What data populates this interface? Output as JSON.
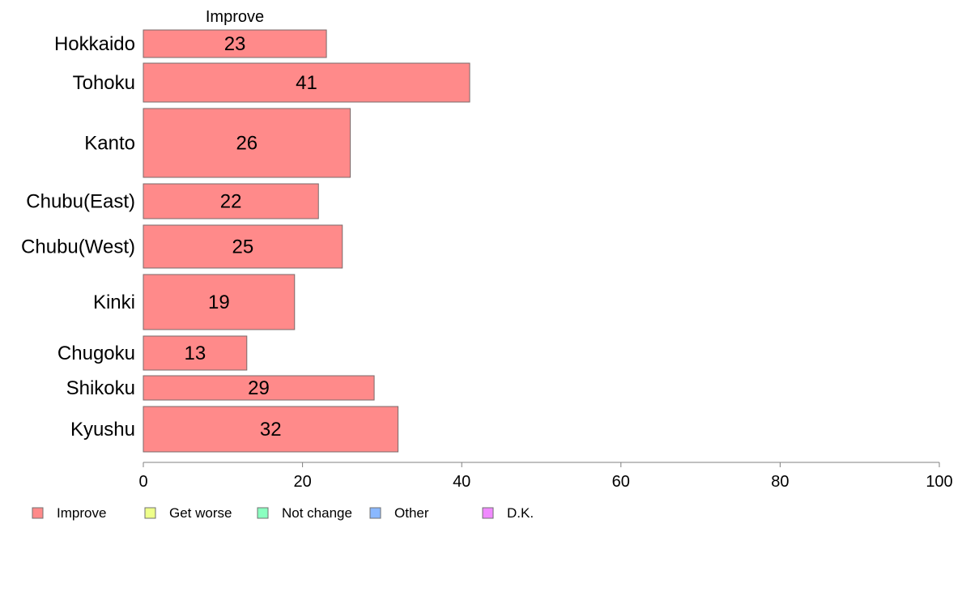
{
  "chart_data": {
    "type": "bar",
    "orientation": "horizontal",
    "series_header": "Improve",
    "categories": [
      "Hokkaido",
      "Tohoku",
      "Kanto",
      "Chubu(East)",
      "Chubu(West)",
      "Kinki",
      "Chugoku",
      "Shikoku",
      "Kyushu"
    ],
    "series": [
      {
        "name": "Improve",
        "values": [
          23,
          41,
          26,
          22,
          25,
          19,
          13,
          29,
          32
        ]
      }
    ],
    "data_labels": [
      "23",
      "41",
      "26",
      "22",
      "25",
      "19",
      "13",
      "29",
      "32"
    ],
    "xlim": [
      0,
      100
    ],
    "x_ticks": [
      0,
      20,
      40,
      60,
      80,
      100
    ],
    "x_tick_labels": [
      "0",
      "20",
      "40",
      "60",
      "80",
      "100"
    ],
    "grid": false,
    "legend": {
      "placement": "bottom",
      "entries": [
        {
          "label": "Improve",
          "color": "#ff8a8a"
        },
        {
          "label": "Get worse",
          "color": "#eeff8a"
        },
        {
          "label": "Not change",
          "color": "#8affc0"
        },
        {
          "label": "Other",
          "color": "#8ab8ff"
        },
        {
          "label": "D.K.",
          "color": "#f08aff"
        }
      ]
    },
    "bar_color": "#ff8a8a"
  }
}
